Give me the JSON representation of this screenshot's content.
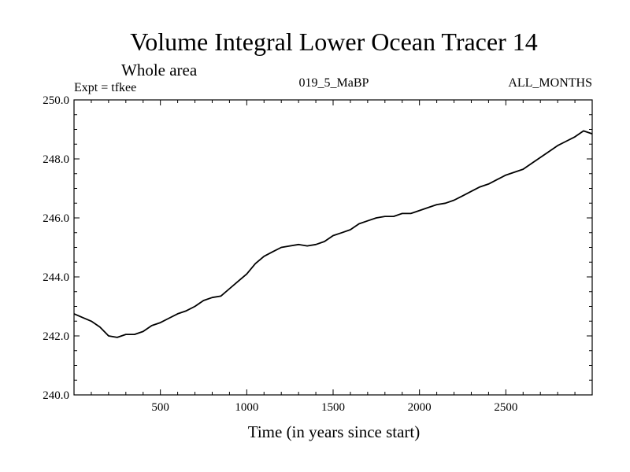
{
  "chart_data": {
    "type": "line",
    "title": "Volume Integral Lower Ocean Tracer 14",
    "subtitle": "Whole area",
    "experiment_label": "Expt = tfkee",
    "center_label": "019_5_MaBP",
    "right_label": "ALL_MONTHS",
    "xlabel": "Time (in years since start)",
    "ylabel": "",
    "xlim": [
      0,
      3000
    ],
    "ylim": [
      240.0,
      250.0
    ],
    "x_ticks": [
      500,
      1000,
      1500,
      2000,
      2500
    ],
    "x_tick_labels": [
      "500",
      "1000",
      "1500",
      "2000",
      "2500"
    ],
    "y_ticks": [
      240.0,
      242.0,
      244.0,
      246.0,
      248.0,
      250.0
    ],
    "y_tick_labels": [
      "240.0",
      "242.0",
      "244.0",
      "246.0",
      "248.0",
      "250.0"
    ],
    "grid": false,
    "series": [
      {
        "color": "#000000",
        "x": [
          0,
          50,
          100,
          150,
          200,
          250,
          300,
          350,
          400,
          450,
          500,
          550,
          600,
          650,
          700,
          750,
          800,
          850,
          900,
          950,
          1000,
          1050,
          1100,
          1150,
          1200,
          1250,
          1300,
          1350,
          1400,
          1450,
          1500,
          1550,
          1600,
          1650,
          1700,
          1750,
          1800,
          1850,
          1900,
          1950,
          2000,
          2050,
          2100,
          2150,
          2200,
          2250,
          2300,
          2350,
          2400,
          2450,
          2500,
          2550,
          2600,
          2650,
          2700,
          2750,
          2800,
          2850,
          2900,
          2950,
          3000
        ],
        "values": [
          242.75,
          242.62,
          242.5,
          242.3,
          242.0,
          241.95,
          242.05,
          242.05,
          242.15,
          242.35,
          242.45,
          242.6,
          242.75,
          242.85,
          243.0,
          243.2,
          243.3,
          243.35,
          243.6,
          243.85,
          244.1,
          244.45,
          244.7,
          244.85,
          245.0,
          245.05,
          245.1,
          245.05,
          245.1,
          245.2,
          245.4,
          245.5,
          245.6,
          245.8,
          245.9,
          246.0,
          246.05,
          246.05,
          246.15,
          246.15,
          246.25,
          246.35,
          246.45,
          246.5,
          246.6,
          246.75,
          246.9,
          247.05,
          247.15,
          247.3,
          247.45,
          247.55,
          247.65,
          247.85,
          248.05,
          248.25,
          248.45,
          248.6,
          248.75,
          248.95,
          248.85
        ]
      }
    ]
  }
}
